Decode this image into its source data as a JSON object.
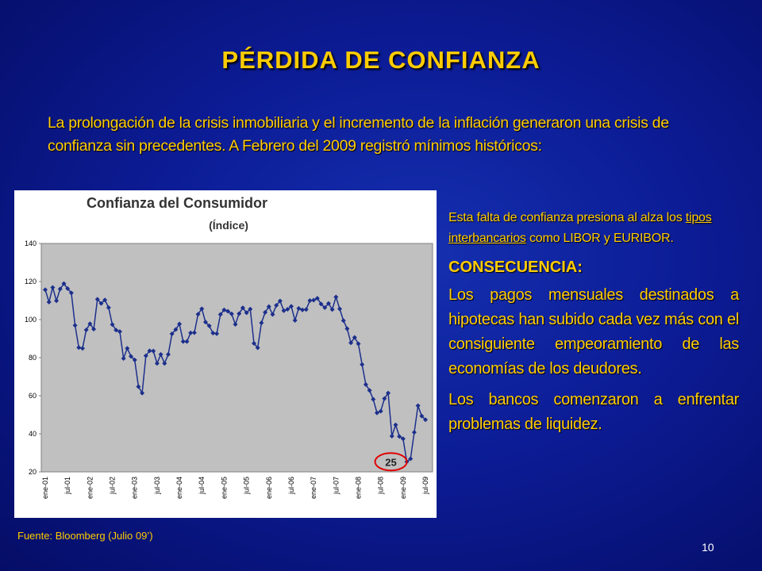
{
  "slide": {
    "title": "PÉRDIDA DE CONFIANZA",
    "intro": "La prolongación de la crisis inmobiliaria y el incremento de la inflación generaron una crisis de confianza sin precedentes. A Febrero del 2009 registró mínimos históricos:",
    "side_intro": [
      "Esta falta de confianza presiona al alza los ",
      "tipos interbancarios",
      " como LIBOR y EURIBOR."
    ],
    "heading": "CONSECUENCIA:",
    "paragraphs": [
      "Los pagos mensuales destinados a hipotecas han subido cada vez más con el consiguiente empeoramiento de las economías de los deudores.",
      " Los bancos comenzaron a enfrentar problemas de liquidez."
    ],
    "source": "Fuente: Bloomberg (Julio 09’)",
    "page": "10"
  },
  "chart_data": {
    "type": "line",
    "title": "Confianza del Consumidor",
    "subtitle": "(Índice)",
    "annotation": "25",
    "categories": [
      "ene-01",
      null,
      null,
      null,
      null,
      null,
      "jul-01",
      null,
      null,
      null,
      null,
      null,
      "ene-02",
      null,
      null,
      null,
      null,
      null,
      "jul-02",
      null,
      null,
      null,
      null,
      null,
      "ene-03",
      null,
      null,
      null,
      null,
      null,
      "jul-03",
      null,
      null,
      null,
      null,
      null,
      "ene-04",
      null,
      null,
      null,
      null,
      null,
      "jul-04",
      null,
      null,
      null,
      null,
      null,
      "ene-05",
      null,
      null,
      null,
      null,
      null,
      "jul-05",
      null,
      null,
      null,
      null,
      null,
      "ene-06",
      null,
      null,
      null,
      null,
      null,
      "jul-06",
      null,
      null,
      null,
      null,
      null,
      "ene-07",
      null,
      null,
      null,
      null,
      null,
      "jul-07",
      null,
      null,
      null,
      null,
      null,
      "ene-08",
      null,
      null,
      null,
      null,
      null,
      "jul-08",
      null,
      null,
      null,
      null,
      null,
      "ene-09",
      null,
      null,
      null,
      null,
      null,
      "jul-09"
    ],
    "series": [
      {
        "name": "Confianza del Consumidor",
        "color": "#1c2f8c",
        "values": [
          115.7,
          109.2,
          116.9,
          109.9,
          116.1,
          118.9,
          116.3,
          114.0,
          97.0,
          85.3,
          84.9,
          94.6,
          97.8,
          95.0,
          110.7,
          108.5,
          110.3,
          106.3,
          97.4,
          94.5,
          93.7,
          79.6,
          84.9,
          80.7,
          78.8,
          64.8,
          61.4,
          81.0,
          83.6,
          83.5,
          77.0,
          81.7,
          77.0,
          81.7,
          92.5,
          94.8,
          97.7,
          88.5,
          88.5,
          93.0,
          93.1,
          102.8,
          105.7,
          98.7,
          96.7,
          92.9,
          92.6,
          102.7,
          105.1,
          104.4,
          103.0,
          97.5,
          103.1,
          106.2,
          103.6,
          105.5,
          87.5,
          85.2,
          98.3,
          103.8,
          106.8,
          102.7,
          107.5,
          109.8,
          104.7,
          105.4,
          107.0,
          99.6,
          105.9,
          105.1,
          105.3,
          110.0,
          110.2,
          111.2,
          108.2,
          106.3,
          108.5,
          105.3,
          111.9,
          105.6,
          99.5,
          95.2,
          87.8,
          90.6,
          87.3,
          76.4,
          65.9,
          62.8,
          58.1,
          51.0,
          51.9,
          58.5,
          61.4,
          38.8,
          44.7,
          38.6,
          37.4,
          25.3,
          26.9,
          40.8,
          54.8,
          49.3,
          47.4
        ]
      }
    ],
    "ylim": [
      20,
      140
    ],
    "yticks": [
      20,
      40,
      60,
      80,
      100,
      120,
      140
    ],
    "grid": false,
    "plot_background": "#c0c0c0"
  }
}
